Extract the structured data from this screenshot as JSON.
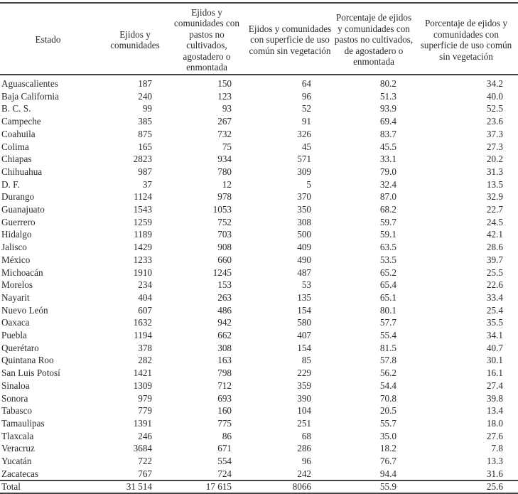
{
  "table": {
    "headers": [
      "Estado",
      "Ejidos y comunidades",
      "Ejidos y comunidades con pastos no cultivados, agostadero o enmontada",
      "Ejidos y comunidades con superficie de uso común sin vegetación",
      "Porcentaje de ejidos y comunidades con pastos no cultivados, de agostadero o enmontada",
      "Porcentaje de ejidos y comunidades con superficie de uso común sin vegetación"
    ],
    "rows": [
      [
        "Aguascalientes",
        "187",
        "150",
        "64",
        "80.2",
        "34.2"
      ],
      [
        "Baja California",
        "240",
        "123",
        "96",
        "51.3",
        "40.0"
      ],
      [
        "B. C. S.",
        "99",
        "93",
        "52",
        "93.9",
        "52.5"
      ],
      [
        "Campeche",
        "385",
        "267",
        "91",
        "69.4",
        "23.6"
      ],
      [
        "Coahuila",
        "875",
        "732",
        "326",
        "83.7",
        "37.3"
      ],
      [
        "Colima",
        "165",
        "75",
        "45",
        "45.5",
        "27.3"
      ],
      [
        "Chiapas",
        "2823",
        "934",
        "571",
        "33.1",
        "20.2"
      ],
      [
        "Chihuahua",
        "987",
        "780",
        "309",
        "79.0",
        "31.3"
      ],
      [
        "D. F.",
        "37",
        "12",
        "5",
        "32.4",
        "13.5"
      ],
      [
        "Durango",
        "1124",
        "978",
        "370",
        "87.0",
        "32.9"
      ],
      [
        "Guanajuato",
        "1543",
        "1053",
        "350",
        "68.2",
        "22.7"
      ],
      [
        "Guerrero",
        "1259",
        "752",
        "308",
        "59.7",
        "24.5"
      ],
      [
        "Hidalgo",
        "1189",
        "703",
        "500",
        "59.1",
        "42.1"
      ],
      [
        "Jalisco",
        "1429",
        "908",
        "409",
        "63.5",
        "28.6"
      ],
      [
        "México",
        "1233",
        "660",
        "490",
        "53.5",
        "39.7"
      ],
      [
        "Michoacán",
        "1910",
        "1245",
        "487",
        "65.2",
        "25.5"
      ],
      [
        "Morelos",
        "234",
        "153",
        "53",
        "65.4",
        "22.6"
      ],
      [
        "Nayarit",
        "404",
        "263",
        "135",
        "65.1",
        "33.4"
      ],
      [
        "Nuevo León",
        "607",
        "486",
        "154",
        "80.1",
        "25.4"
      ],
      [
        "Oaxaca",
        "1632",
        "942",
        "580",
        "57.7",
        "35.5"
      ],
      [
        "Puebla",
        "1194",
        "662",
        "407",
        "55.4",
        "34.1"
      ],
      [
        "Querétaro",
        "378",
        "308",
        "154",
        "81.5",
        "40.7"
      ],
      [
        "Quintana Roo",
        "282",
        "163",
        "85",
        "57.8",
        "30.1"
      ],
      [
        "San Luis Potosí",
        "1421",
        "798",
        "229",
        "56.2",
        "16.1"
      ],
      [
        "Sinaloa",
        "1309",
        "712",
        "359",
        "54.4",
        "27.4"
      ],
      [
        "Sonora",
        "979",
        "693",
        "390",
        "70.8",
        "39.8"
      ],
      [
        "Tabasco",
        "779",
        "160",
        "104",
        "20.5",
        "13.4"
      ],
      [
        "Tamaulipas",
        "1391",
        "775",
        "251",
        "55.7",
        "18.0"
      ],
      [
        "Tlaxcala",
        "246",
        "86",
        "68",
        "35.0",
        "27.6"
      ],
      [
        "Veracruz",
        "3684",
        "671",
        "286",
        "18.2",
        "7.8"
      ],
      [
        "Yucatán",
        "722",
        "554",
        "96",
        "76.7",
        "13.3"
      ],
      [
        "Zacatecas",
        "767",
        "724",
        "242",
        "94.4",
        "31.6"
      ]
    ],
    "total": [
      "Total",
      "31 514",
      "17 615",
      "8066",
      "55.9",
      "25.6"
    ]
  }
}
